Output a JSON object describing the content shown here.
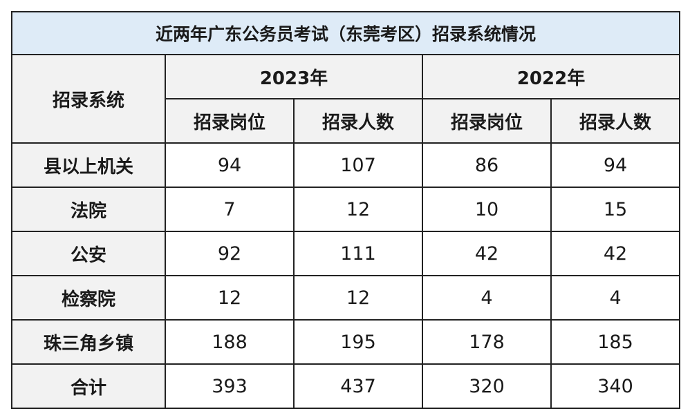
{
  "chart_data": {
    "type": "table",
    "title": "近两年广东公务员考试（东莞考区）招录系统情况",
    "row_header": "招录系统",
    "years": [
      "2023年",
      "2022年"
    ],
    "columns": [
      "招录岗位",
      "招录人数",
      "招录岗位",
      "招录人数"
    ],
    "rows": [
      {
        "label": "县以上机关",
        "values": [
          "94",
          "107",
          "86",
          "94"
        ]
      },
      {
        "label": "法院",
        "values": [
          "7",
          "12",
          "10",
          "15"
        ]
      },
      {
        "label": "公安",
        "values": [
          "92",
          "111",
          "42",
          "42"
        ]
      },
      {
        "label": "检察院",
        "values": [
          "12",
          "12",
          "4",
          "4"
        ]
      },
      {
        "label": "珠三角乡镇",
        "values": [
          "188",
          "195",
          "178",
          "185"
        ]
      },
      {
        "label": "合计",
        "values": [
          "393",
          "437",
          "320",
          "340"
        ]
      }
    ]
  },
  "colors": {
    "title_bg": "#deebf7",
    "header_bg": "#f2f2f2",
    "border": "#222222"
  }
}
